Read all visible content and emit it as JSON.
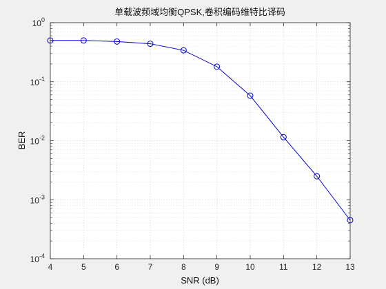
{
  "chart_data": {
    "type": "line",
    "title": "单载波频域均衡QPSK,卷积编码维特比译码",
    "xlabel": "SNR (dB)",
    "ylabel": "BER",
    "x_scale": "linear",
    "y_scale": "log",
    "xlim": [
      4,
      13
    ],
    "ylim": [
      0.0001,
      1
    ],
    "x_ticks": [
      4,
      5,
      6,
      7,
      8,
      9,
      10,
      11,
      12,
      13
    ],
    "y_ticks": [
      {
        "value": 1,
        "base": "10",
        "exp": "0"
      },
      {
        "value": 0.1,
        "base": "10",
        "exp": "-1"
      },
      {
        "value": 0.01,
        "base": "10",
        "exp": "-2"
      },
      {
        "value": 0.001,
        "base": "10",
        "exp": "-3"
      },
      {
        "value": 0.0001,
        "base": "10",
        "exp": "-4"
      }
    ],
    "grid": true,
    "minor_grid": true,
    "series": [
      {
        "color": "#0000cc",
        "marker": "circle",
        "x": [
          4,
          5,
          6,
          7,
          8,
          9,
          10,
          11,
          12,
          13
        ],
        "y": [
          0.5,
          0.5,
          0.48,
          0.44,
          0.34,
          0.18,
          0.058,
          0.0115,
          0.0025,
          0.00045
        ]
      }
    ]
  }
}
